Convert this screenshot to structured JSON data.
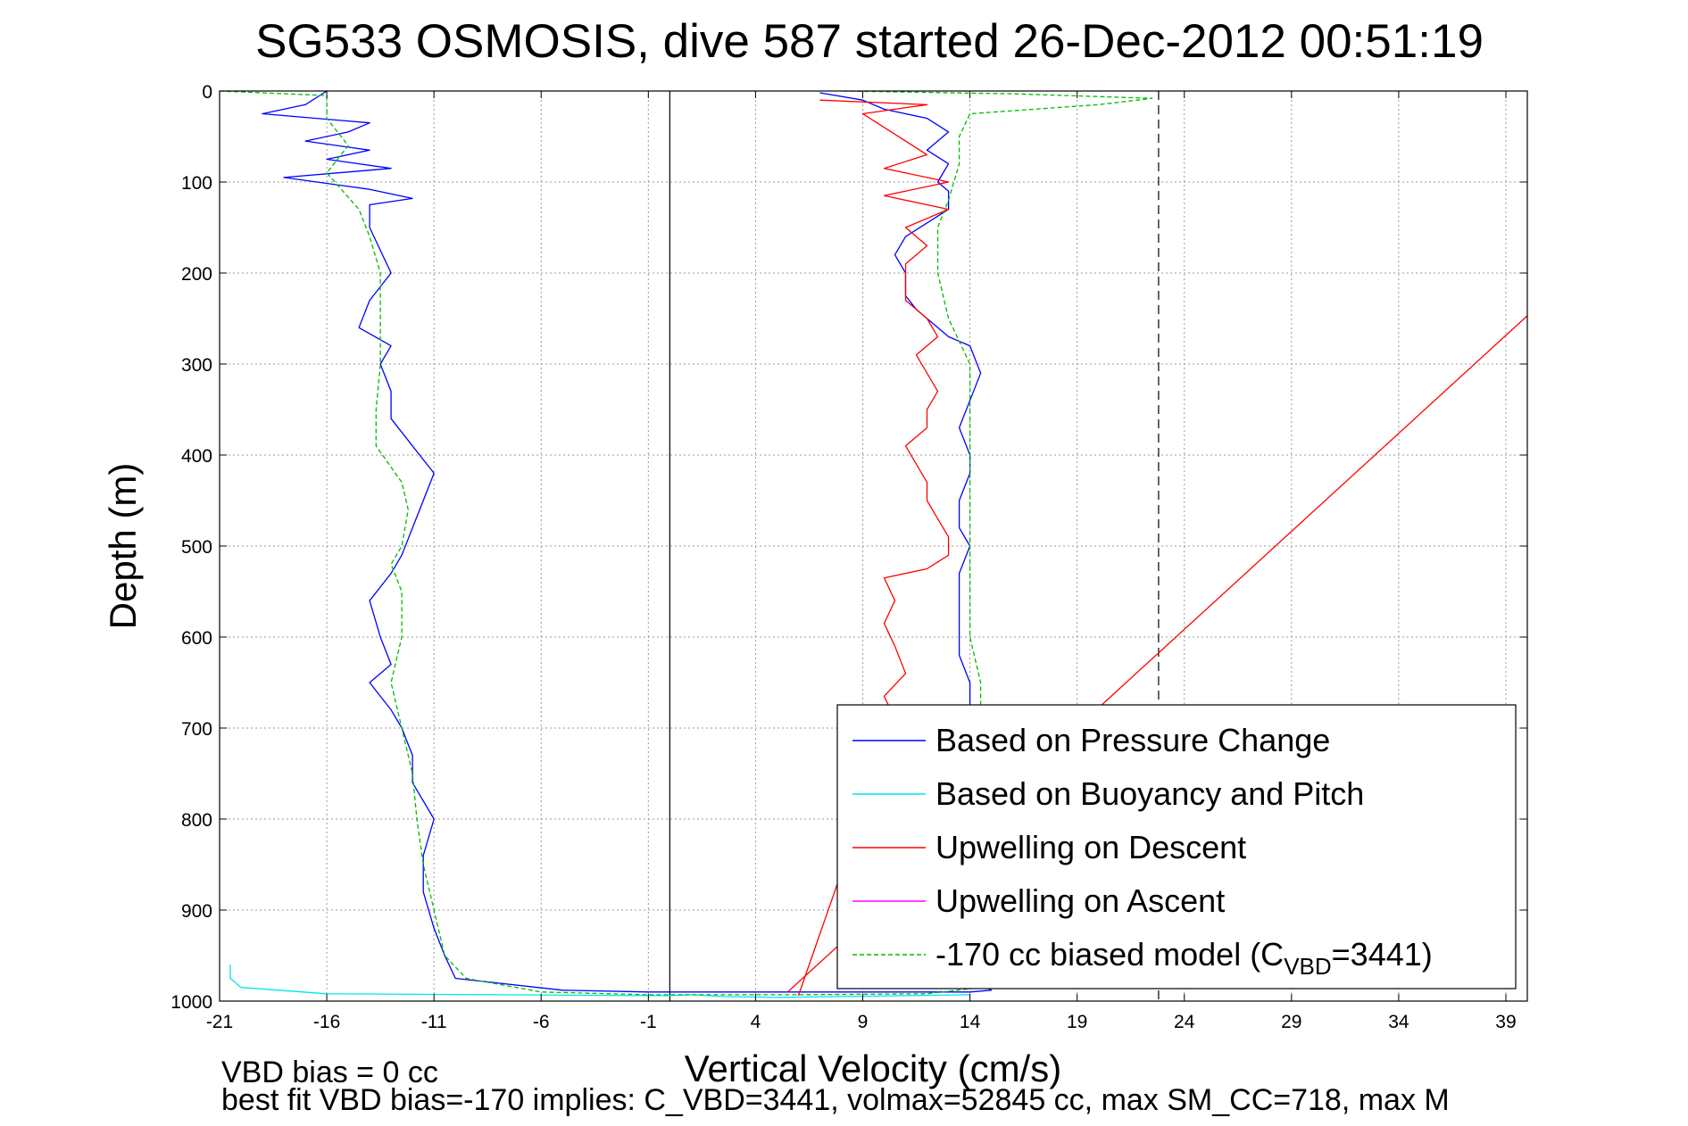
{
  "chart_data": {
    "type": "line",
    "title": "SG533 OSMOSIS, dive 587 started 26-Dec-2012 00:51:19",
    "xlabel": "Vertical Velocity (cm/s)",
    "ylabel": "Depth (m)",
    "xlim": [
      -21,
      40
    ],
    "ylim": [
      0,
      1000
    ],
    "y_reversed": true,
    "grid": true,
    "x_ticks": [
      -21,
      -16,
      -11,
      -6,
      -1,
      4,
      9,
      14,
      19,
      24,
      29,
      34,
      39
    ],
    "x_tick_labels": [
      "-21",
      "-16",
      "-11",
      "-6",
      "-1",
      "4",
      "9",
      "14",
      "19",
      "24",
      "29",
      "34",
      "39"
    ],
    "y_ticks": [
      0,
      100,
      200,
      300,
      400,
      500,
      600,
      700,
      800,
      900,
      1000
    ],
    "y_tick_labels": [
      "0",
      "100",
      "200",
      "300",
      "400",
      "500",
      "600",
      "700",
      "800",
      "900",
      "1000"
    ],
    "reference_lines": [
      {
        "x": 0,
        "style": "solid",
        "color": "#000000"
      },
      {
        "x": 22.8,
        "style": "dashed",
        "color": "#000000"
      }
    ],
    "legend_placement": "bottom-right",
    "series": [
      {
        "name": "Based on Pressure Change",
        "color": "#0000ff",
        "style": "solid",
        "points": [
          [
            -16,
            0
          ],
          [
            -17,
            15
          ],
          [
            -19,
            25
          ],
          [
            -14,
            35
          ],
          [
            -15,
            45
          ],
          [
            -17,
            55
          ],
          [
            -14,
            65
          ],
          [
            -16,
            75
          ],
          [
            -13,
            85
          ],
          [
            -18,
            95
          ],
          [
            -14,
            108
          ],
          [
            -12,
            118
          ],
          [
            -14,
            125
          ],
          [
            -14,
            150
          ],
          [
            -13.5,
            175
          ],
          [
            -13,
            200
          ],
          [
            -14,
            230
          ],
          [
            -14.5,
            260
          ],
          [
            -13,
            280
          ],
          [
            -13.5,
            300
          ],
          [
            -13,
            330
          ],
          [
            -13,
            360
          ],
          [
            -12,
            390
          ],
          [
            -11,
            420
          ],
          [
            -11.5,
            450
          ],
          [
            -12,
            480
          ],
          [
            -12.5,
            510
          ],
          [
            -13,
            530
          ],
          [
            -14,
            560
          ],
          [
            -13.5,
            600
          ],
          [
            -13,
            630
          ],
          [
            -14,
            650
          ],
          [
            -13,
            680
          ],
          [
            -12.5,
            700
          ],
          [
            -12,
            730
          ],
          [
            -12,
            760
          ],
          [
            -11,
            800
          ],
          [
            -11.5,
            840
          ],
          [
            -11.5,
            880
          ],
          [
            -11,
            920
          ],
          [
            -10.5,
            950
          ],
          [
            -10,
            975
          ],
          [
            -5,
            988
          ],
          [
            -1,
            990
          ],
          [
            0,
            990
          ],
          [
            6,
            990
          ],
          [
            14,
            990
          ],
          [
            15,
            988
          ],
          [
            14,
            975
          ],
          [
            14,
            950
          ],
          [
            14,
            900
          ],
          [
            14,
            850
          ],
          [
            14,
            800
          ],
          [
            14,
            750
          ],
          [
            14,
            700
          ],
          [
            14,
            650
          ],
          [
            13.5,
            620
          ],
          [
            13.5,
            600
          ],
          [
            13.5,
            560
          ],
          [
            13.5,
            530
          ],
          [
            14,
            500
          ],
          [
            13.5,
            480
          ],
          [
            13.5,
            450
          ],
          [
            14,
            420
          ],
          [
            14,
            400
          ],
          [
            13.5,
            370
          ],
          [
            14,
            340
          ],
          [
            14.5,
            310
          ],
          [
            14,
            280
          ],
          [
            13,
            270
          ],
          [
            12,
            250
          ],
          [
            11.5,
            240
          ],
          [
            11,
            225
          ],
          [
            11,
            200
          ],
          [
            10.5,
            180
          ],
          [
            11,
            160
          ],
          [
            12,
            145
          ],
          [
            13,
            130
          ],
          [
            13,
            110
          ],
          [
            12.5,
            100
          ],
          [
            13,
            80
          ],
          [
            12,
            65
          ],
          [
            13,
            45
          ],
          [
            12,
            30
          ],
          [
            10,
            20
          ],
          [
            9,
            10
          ],
          [
            7,
            2
          ]
        ]
      },
      {
        "name": "Based on Buoyancy and Pitch",
        "color": "#00e5e5",
        "style": "solid",
        "points": [
          [
            -20.5,
            960
          ],
          [
            -20.5,
            975
          ],
          [
            -20,
            985
          ],
          [
            -16,
            992
          ],
          [
            -8,
            993
          ],
          [
            -1,
            994
          ],
          [
            0,
            994
          ],
          [
            1,
            993
          ],
          [
            2.5,
            995
          ],
          [
            5,
            996
          ],
          [
            8,
            995
          ],
          [
            14,
            993
          ]
        ]
      },
      {
        "name": "Upwelling on Descent",
        "color": "#ff0000",
        "style": "solid",
        "points": [
          [
            7,
            10
          ],
          [
            12,
            15
          ],
          [
            9,
            25
          ],
          [
            10,
            40
          ],
          [
            11,
            55
          ],
          [
            12,
            70
          ],
          [
            10,
            85
          ],
          [
            13,
            100
          ],
          [
            10,
            115
          ],
          [
            13,
            130
          ],
          [
            11,
            150
          ],
          [
            12,
            170
          ],
          [
            11,
            190
          ],
          [
            11,
            210
          ],
          [
            11,
            230
          ],
          [
            12,
            250
          ],
          [
            12.5,
            270
          ],
          [
            11.5,
            290
          ],
          [
            12,
            310
          ],
          [
            12.5,
            330
          ],
          [
            12,
            350
          ],
          [
            12,
            370
          ],
          [
            11,
            390
          ],
          [
            11.5,
            410
          ],
          [
            12,
            430
          ],
          [
            12,
            450
          ],
          [
            12.5,
            470
          ],
          [
            13,
            490
          ],
          [
            13,
            510
          ],
          [
            12,
            525
          ],
          [
            10,
            535
          ],
          [
            10.5,
            560
          ],
          [
            10,
            585
          ],
          [
            10.5,
            610
          ],
          [
            11,
            640
          ],
          [
            10,
            665
          ],
          [
            10.5,
            690
          ],
          [
            6,
            994
          ]
        ]
      },
      {
        "name": "Upwelling on Ascent",
        "color": "#ff00ff",
        "style": "solid",
        "points": []
      },
      {
        "name": "-170 cc biased model (C_VBD=3441)",
        "label_main": "-170 cc biased model (C",
        "label_sub": "VBD",
        "label_tail": "=3441)",
        "color": "#00bb00",
        "style": "dashed",
        "points": [
          [
            -21,
            0
          ],
          [
            -16,
            5
          ],
          [
            -16,
            30
          ],
          [
            -15,
            60
          ],
          [
            -16,
            90
          ],
          [
            -14.5,
            130
          ],
          [
            -14,
            160
          ],
          [
            -13.5,
            200
          ],
          [
            -13.5,
            250
          ],
          [
            -13.5,
            300
          ],
          [
            -13.7,
            350
          ],
          [
            -13.7,
            390
          ],
          [
            -12.5,
            430
          ],
          [
            -12.2,
            460
          ],
          [
            -12.5,
            500
          ],
          [
            -13,
            520
          ],
          [
            -12.5,
            550
          ],
          [
            -12.5,
            600
          ],
          [
            -13,
            650
          ],
          [
            -12.5,
            700
          ],
          [
            -12,
            750
          ],
          [
            -11.8,
            800
          ],
          [
            -11.5,
            850
          ],
          [
            -11,
            900
          ],
          [
            -10.5,
            950
          ],
          [
            -9.5,
            975
          ],
          [
            -6,
            990
          ],
          [
            -1,
            993
          ],
          [
            0,
            993
          ],
          [
            6,
            993
          ],
          [
            12,
            992
          ],
          [
            14.5,
            985
          ],
          [
            14.5,
            960
          ],
          [
            14.5,
            900
          ],
          [
            14.5,
            850
          ],
          [
            14.5,
            800
          ],
          [
            14.5,
            750
          ],
          [
            14.5,
            700
          ],
          [
            14.5,
            650
          ],
          [
            14,
            600
          ],
          [
            14,
            550
          ],
          [
            14,
            500
          ],
          [
            14,
            450
          ],
          [
            14,
            400
          ],
          [
            14,
            350
          ],
          [
            14,
            300
          ],
          [
            13,
            250
          ],
          [
            12.5,
            200
          ],
          [
            12.5,
            150
          ],
          [
            13,
            120
          ],
          [
            13.5,
            80
          ],
          [
            13.5,
            50
          ],
          [
            14,
            25
          ],
          [
            20,
            15
          ],
          [
            22.5,
            8
          ],
          [
            16,
            3
          ],
          [
            8,
            0
          ]
        ]
      },
      {
        "name": "",
        "color": "#ff0000",
        "style": "solid",
        "points": [
          [
            5.5,
            990
          ],
          [
            40,
            247
          ]
        ]
      }
    ],
    "footnotes": [
      "VBD bias = 0 cc",
      "best fit VBD bias=-170 implies: C_VBD=3441, volmax=52845 cc, max SM_CC=718, max M"
    ]
  }
}
